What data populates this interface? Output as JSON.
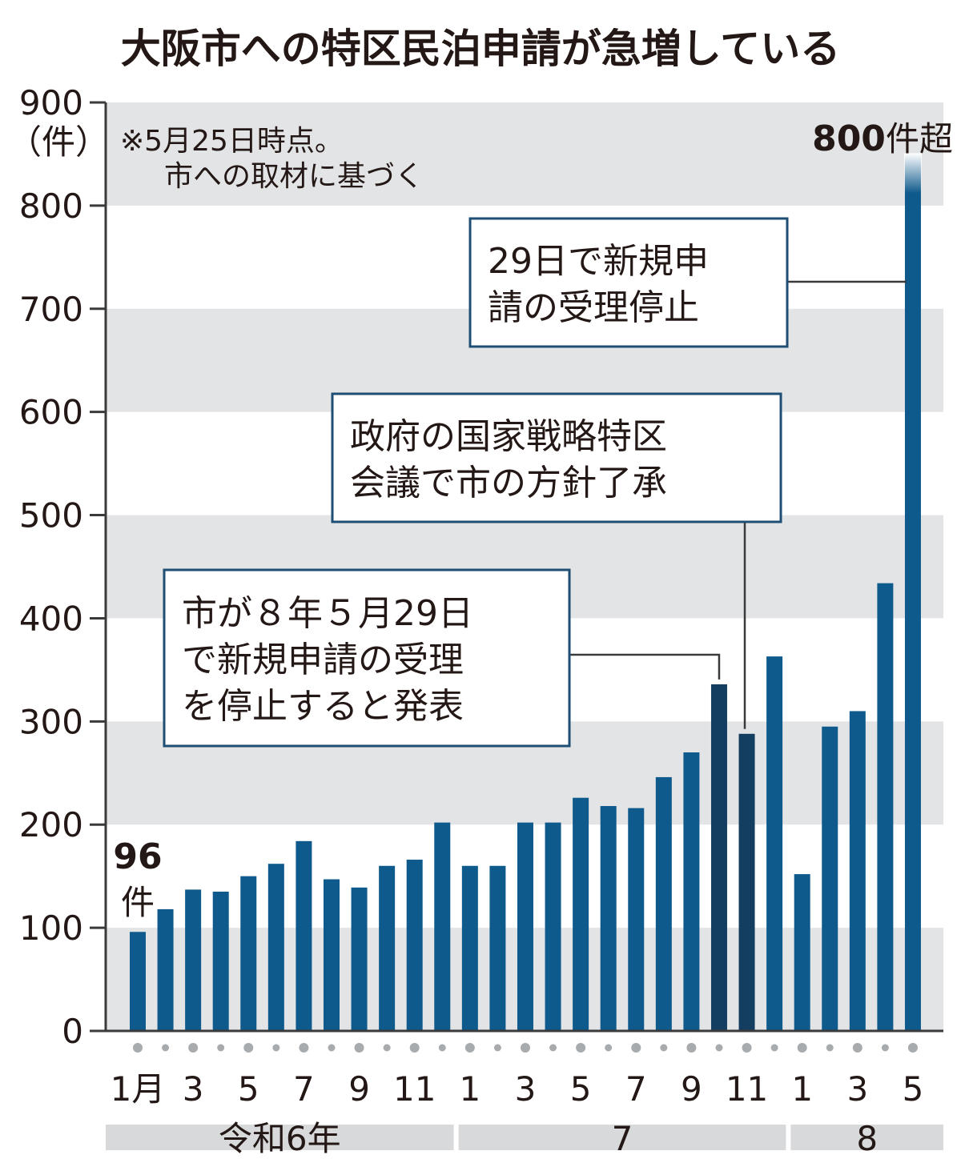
{
  "title": "大阪市への特区民泊申請が急増している",
  "note": [
    "※5月25日時点。",
    "市への取材に基づく"
  ],
  "y_unit": "（件）",
  "chart_data": {
    "type": "bar",
    "title": "大阪市への特区民泊申請が急増している",
    "ylim": [
      0,
      900
    ],
    "y_ticks": [
      0,
      100,
      200,
      300,
      400,
      500,
      600,
      700,
      800,
      900
    ],
    "grid": "alternating bands",
    "categories": [
      "令和6年1月",
      "令和6年2月",
      "令和6年3月",
      "令和6年4月",
      "令和6年5月",
      "令和6年6月",
      "令和6年7月",
      "令和6年8月",
      "令和6年9月",
      "令和6年10月",
      "令和6年11月",
      "令和6年12月",
      "7年1月",
      "7年2月",
      "7年3月",
      "7年4月",
      "7年5月",
      "7年6月",
      "7年7月",
      "7年8月",
      "7年9月",
      "7年10月",
      "7年11月",
      "7年12月",
      "8年1月",
      "8年2月",
      "8年3月",
      "8年4月",
      "8年5月"
    ],
    "values": [
      96,
      118,
      137,
      135,
      150,
      162,
      184,
      147,
      139,
      160,
      166,
      202,
      160,
      160,
      202,
      202,
      226,
      218,
      216,
      246,
      270,
      336,
      288,
      363,
      152,
      295,
      310,
      434,
      850
    ],
    "x_tick_labels": [
      "1月",
      "",
      "3",
      "",
      "5",
      "",
      "7",
      "",
      "9",
      "",
      "11",
      "",
      "1",
      "",
      "3",
      "",
      "5",
      "",
      "7",
      "",
      "9",
      "",
      "11",
      "",
      "1",
      "",
      "3",
      "",
      "5"
    ],
    "year_groups": [
      {
        "label": "令和6年",
        "start": 0,
        "end": 11
      },
      {
        "label": "7",
        "start": 12,
        "end": 23
      },
      {
        "label": "8",
        "start": 24,
        "end": 28
      }
    ],
    "value_labels": [
      {
        "index": 0,
        "bold": "96",
        "unit": "件"
      },
      {
        "index": 28,
        "bold": "800",
        "unit": "件超"
      }
    ],
    "annotations": [
      {
        "index": 21,
        "lines": [
          "市が８年５月29日",
          "で新規申請の受理",
          "を停止すると発表"
        ]
      },
      {
        "index": 22,
        "lines": [
          "政府の国家戦略特区",
          "会議で市の方針了承"
        ]
      },
      {
        "index": 28,
        "lines": [
          "29日で新規申",
          "請の受理停止"
        ]
      }
    ],
    "colors": {
      "bar": "#0f5a8c",
      "bar_dark": "#143d62",
      "band": "#e3e4e6",
      "axis": "#3a3a3a",
      "annotation_border": "#1f4e74",
      "dot": "#a8abad",
      "group_band": "#d8d9db"
    }
  }
}
